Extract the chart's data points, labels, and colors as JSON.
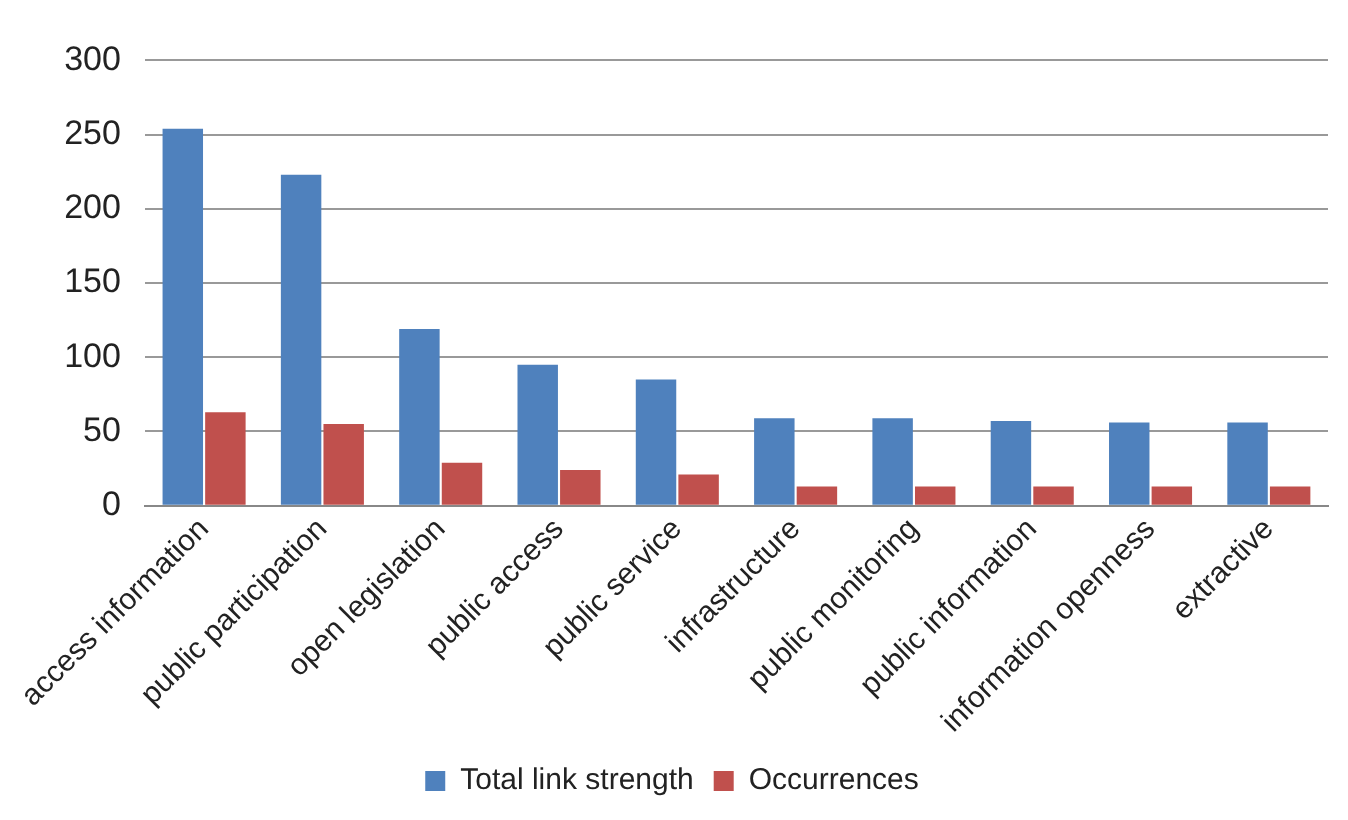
{
  "chart_data": {
    "type": "bar",
    "categories": [
      "access information",
      "public participation",
      "open legislation",
      "public access",
      "public service",
      "infrastructure",
      "public monitoring",
      "public information",
      "information openness",
      "extractive"
    ],
    "series": [
      {
        "name": "Total link strength",
        "color": "#4f81bd",
        "values": [
          254,
          223,
          119,
          95,
          85,
          59,
          59,
          57,
          56,
          56
        ]
      },
      {
        "name": "Occurrences",
        "color": "#c0504d",
        "values": [
          63,
          55,
          29,
          24,
          21,
          13,
          13,
          13,
          13,
          13
        ]
      }
    ],
    "ylim": [
      0,
      300
    ],
    "yticks": [
      0,
      50,
      100,
      150,
      200,
      250,
      300
    ],
    "grid": "y",
    "legend": "bottom"
  }
}
